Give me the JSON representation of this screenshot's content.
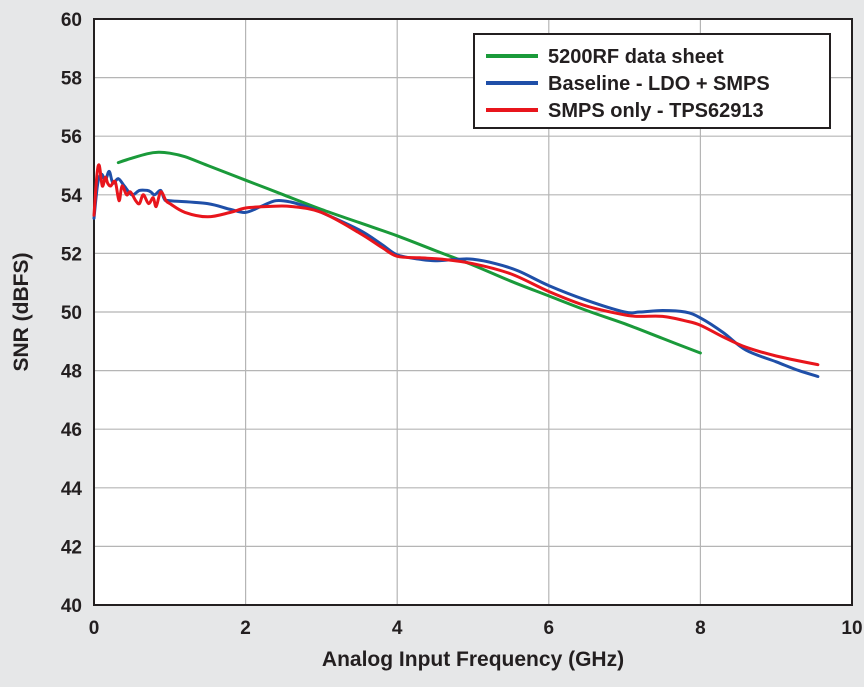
{
  "chart_data": {
    "type": "line",
    "title": "",
    "xlabel": "Analog Input Frequency (GHz)",
    "ylabel": "SNR (dBFS)",
    "xlim": [
      0,
      10
    ],
    "ylim": [
      40,
      60
    ],
    "x_ticks": [
      0,
      2,
      4,
      6,
      8,
      10
    ],
    "y_ticks": [
      40,
      42,
      44,
      46,
      48,
      50,
      52,
      54,
      56,
      58,
      60
    ],
    "x_tick_labels": [
      "0",
      "2",
      "4",
      "6",
      "8",
      "10"
    ],
    "y_tick_labels": [
      "40",
      "42",
      "44",
      "46",
      "48",
      "50",
      "52",
      "54",
      "56",
      "58",
      "60"
    ],
    "grid": true,
    "legend_position": "top-right",
    "series": [
      {
        "name": "5200RF data sheet",
        "color": "#1a9a3a",
        "points": [
          [
            0.32,
            55.1
          ],
          [
            0.5,
            55.25
          ],
          [
            0.7,
            55.4
          ],
          [
            0.85,
            55.45
          ],
          [
            1.0,
            55.42
          ],
          [
            1.2,
            55.3
          ],
          [
            1.5,
            55.0
          ],
          [
            2.0,
            54.5
          ],
          [
            2.5,
            54.0
          ],
          [
            3.0,
            53.5
          ],
          [
            3.5,
            53.05
          ],
          [
            4.0,
            52.6
          ],
          [
            4.5,
            52.1
          ],
          [
            5.0,
            51.6
          ],
          [
            5.5,
            51.05
          ],
          [
            6.0,
            50.55
          ],
          [
            6.5,
            50.05
          ],
          [
            7.0,
            49.6
          ],
          [
            7.5,
            49.1
          ],
          [
            8.0,
            48.6
          ]
        ]
      },
      {
        "name": "Baseline - LDO + SMPS",
        "color": "#1f4fa8",
        "points": [
          [
            0.0,
            53.2
          ],
          [
            0.05,
            54.4
          ],
          [
            0.1,
            54.7
          ],
          [
            0.15,
            54.5
          ],
          [
            0.2,
            54.8
          ],
          [
            0.25,
            54.4
          ],
          [
            0.32,
            54.55
          ],
          [
            0.4,
            54.3
          ],
          [
            0.5,
            54.0
          ],
          [
            0.6,
            54.15
          ],
          [
            0.7,
            54.15
          ],
          [
            0.75,
            54.1
          ],
          [
            0.8,
            54.0
          ],
          [
            0.88,
            54.15
          ],
          [
            0.93,
            53.85
          ],
          [
            1.0,
            53.8
          ],
          [
            1.5,
            53.7
          ],
          [
            1.8,
            53.5
          ],
          [
            2.0,
            53.4
          ],
          [
            2.2,
            53.6
          ],
          [
            2.4,
            53.8
          ],
          [
            2.6,
            53.75
          ],
          [
            2.8,
            53.6
          ],
          [
            3.0,
            53.4
          ],
          [
            3.5,
            52.8
          ],
          [
            3.8,
            52.3
          ],
          [
            4.0,
            51.95
          ],
          [
            4.3,
            51.8
          ],
          [
            4.5,
            51.75
          ],
          [
            4.8,
            51.8
          ],
          [
            5.0,
            51.8
          ],
          [
            5.3,
            51.65
          ],
          [
            5.6,
            51.4
          ],
          [
            6.0,
            50.9
          ],
          [
            6.5,
            50.4
          ],
          [
            7.0,
            50.0
          ],
          [
            7.2,
            50.0
          ],
          [
            7.5,
            50.05
          ],
          [
            7.8,
            50.0
          ],
          [
            8.0,
            49.8
          ],
          [
            8.3,
            49.3
          ],
          [
            8.6,
            48.7
          ],
          [
            9.0,
            48.3
          ],
          [
            9.3,
            48.0
          ],
          [
            9.55,
            47.8
          ]
        ]
      },
      {
        "name": "SMPS only - TPS62913",
        "color": "#e8151c",
        "points": [
          [
            0.0,
            53.3
          ],
          [
            0.04,
            54.7
          ],
          [
            0.07,
            55.0
          ],
          [
            0.11,
            54.3
          ],
          [
            0.15,
            54.6
          ],
          [
            0.18,
            54.4
          ],
          [
            0.22,
            54.3
          ],
          [
            0.28,
            54.45
          ],
          [
            0.33,
            53.8
          ],
          [
            0.37,
            54.3
          ],
          [
            0.43,
            54.0
          ],
          [
            0.48,
            54.1
          ],
          [
            0.55,
            53.8
          ],
          [
            0.6,
            53.7
          ],
          [
            0.65,
            54.0
          ],
          [
            0.72,
            53.7
          ],
          [
            0.78,
            53.9
          ],
          [
            0.82,
            53.6
          ],
          [
            0.88,
            54.1
          ],
          [
            0.95,
            53.8
          ],
          [
            1.0,
            53.7
          ],
          [
            1.2,
            53.4
          ],
          [
            1.5,
            53.25
          ],
          [
            1.8,
            53.4
          ],
          [
            2.0,
            53.55
          ],
          [
            2.3,
            53.6
          ],
          [
            2.6,
            53.6
          ],
          [
            3.0,
            53.4
          ],
          [
            3.5,
            52.7
          ],
          [
            3.8,
            52.2
          ],
          [
            4.0,
            51.9
          ],
          [
            4.3,
            51.85
          ],
          [
            4.6,
            51.8
          ],
          [
            5.0,
            51.65
          ],
          [
            5.5,
            51.3
          ],
          [
            6.0,
            50.7
          ],
          [
            6.5,
            50.2
          ],
          [
            7.0,
            49.9
          ],
          [
            7.2,
            49.85
          ],
          [
            7.5,
            49.85
          ],
          [
            7.8,
            49.7
          ],
          [
            8.0,
            49.55
          ],
          [
            8.3,
            49.15
          ],
          [
            8.6,
            48.8
          ],
          [
            9.0,
            48.5
          ],
          [
            9.55,
            48.2
          ]
        ]
      }
    ]
  }
}
